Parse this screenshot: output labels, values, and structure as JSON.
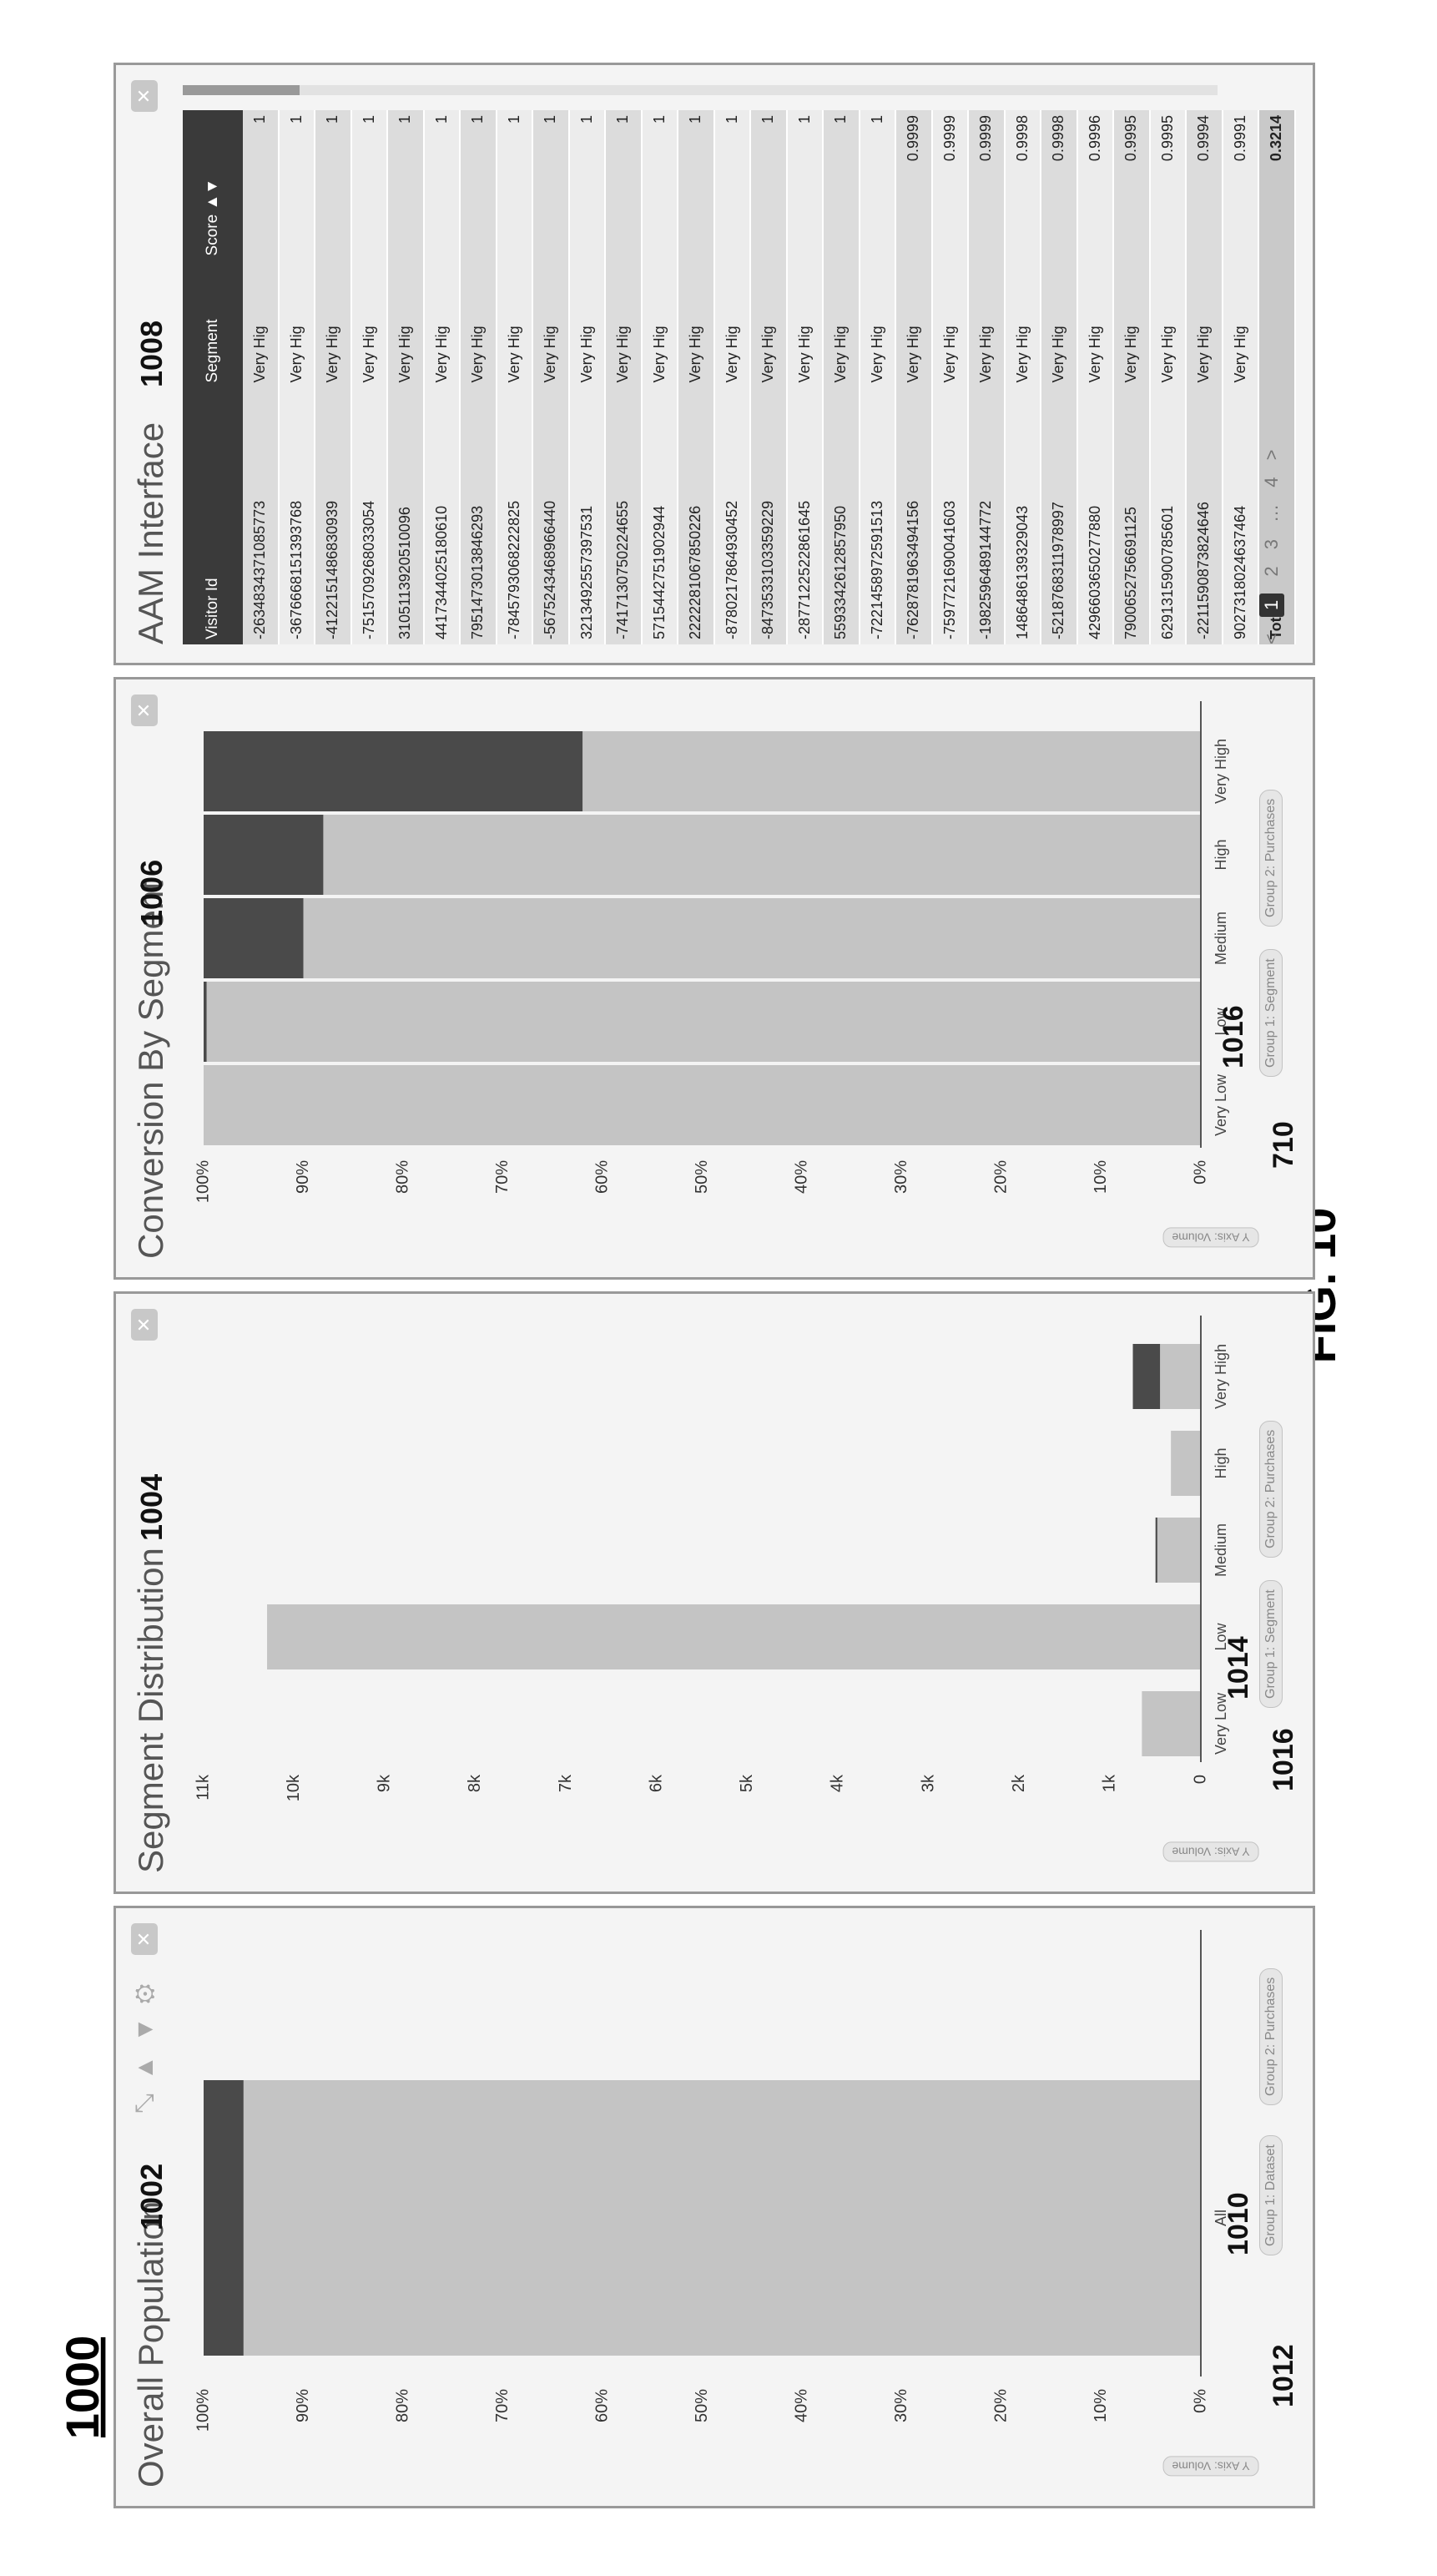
{
  "figure": {
    "number": "1000",
    "caption": "FIG. 10"
  },
  "panels": [
    {
      "title": "Overall Population",
      "ref": "1002"
    },
    {
      "title": "Segment Distribution",
      "ref": "1004"
    },
    {
      "title": "Conversion By Segment",
      "ref": "1006"
    },
    {
      "title": "AAM Interface",
      "ref": "1008"
    }
  ],
  "refs": {
    "r1010": "1010",
    "r1012": "1012",
    "r1014": "1014",
    "r1016a": "1016",
    "r1016b": "1016",
    "r710": "710"
  },
  "legend": {
    "group1_dataset": "Group 1: Dataset",
    "group1_segment": "Group 1: Segment",
    "group1_segment_b": "Group 1: Segment",
    "group2_purchases": "Group 2: Purchases",
    "group2_purchases_b": "Group 2: Purchases",
    "group2_purchases_c": "Group 2: Purchases"
  },
  "axis_buttons": [
    "Y Axis: Volume",
    "Y Axis: Volume",
    "Y Axis: Volume"
  ],
  "colors": {
    "bar_light": "#c4c4c4",
    "bar_dark": "#4a4a4a",
    "panel_bg": "#f4f4f4"
  },
  "chart_data": [
    {
      "type": "bar",
      "categories": [
        "All"
      ],
      "series": [
        {
          "name": "Group 1: Dataset",
          "values": [
            96
          ]
        },
        {
          "name": "Group 2: Purchases",
          "values": [
            4
          ]
        }
      ],
      "stacked": true,
      "yticks": [
        "0%",
        "10%",
        "20%",
        "30%",
        "40%",
        "50%",
        "60%",
        "70%",
        "80%",
        "90%",
        "100%"
      ],
      "ylim": [
        0,
        100
      ]
    },
    {
      "type": "bar",
      "categories": [
        "Very Low",
        "Low",
        "Medium",
        "High",
        "Very High"
      ],
      "series": [
        {
          "name": "Group 1: Segment",
          "values": [
            650,
            10300,
            480,
            330,
            450
          ]
        },
        {
          "name": "Group 2: Purchases",
          "values": [
            0,
            0,
            20,
            0,
            300
          ]
        }
      ],
      "stacked": true,
      "yticks": [
        "0",
        "1k",
        "2k",
        "3k",
        "4k",
        "5k",
        "6k",
        "7k",
        "8k",
        "9k",
        "10k",
        "11k"
      ],
      "ylim": [
        0,
        11000
      ]
    },
    {
      "type": "bar",
      "categories": [
        "Very Low",
        "Low",
        "Medium",
        "High",
        "Very High"
      ],
      "series": [
        {
          "name": "Group 1: Segment",
          "values": [
            100,
            99.7,
            90,
            88,
            62
          ]
        },
        {
          "name": "Group 2: Purchases",
          "values": [
            0,
            0.3,
            10,
            12,
            38
          ]
        }
      ],
      "stacked": true,
      "yticks": [
        "0%",
        "10%",
        "20%",
        "30%",
        "40%",
        "50%",
        "60%",
        "70%",
        "80%",
        "90%",
        "100%"
      ],
      "ylim": [
        0,
        100
      ]
    }
  ],
  "table": {
    "headers": [
      "Visitor Id",
      "Segment",
      "Score ▲▼"
    ],
    "rows": [
      [
        "-2634834371085773",
        "Very Hig",
        "1"
      ],
      [
        "-3676668151393768",
        "Very Hig",
        "1"
      ],
      [
        "-4122151486830939",
        "Very Hig",
        "1"
      ],
      [
        "-7515709268033054",
        "Very Hig",
        "1"
      ],
      [
        "3105113920510096",
        "Very Hig",
        "1"
      ],
      [
        "4417344025180610",
        "Very Hig",
        "1"
      ],
      [
        "7951473013846293",
        "Very Hig",
        "1"
      ],
      [
        "-7845793068222825",
        "Very Hig",
        "1"
      ],
      [
        "-5675243468966440",
        "Very Hig",
        "1"
      ],
      [
        "3213492557397531",
        "Very Hig",
        "1"
      ],
      [
        "-7417130750224655",
        "Very Hig",
        "1"
      ],
      [
        "5715442751902944",
        "Very Hig",
        "1"
      ],
      [
        "2222281067850226",
        "Very Hig",
        "1"
      ],
      [
        "-8780217864930452",
        "Very Hig",
        "1"
      ],
      [
        "-8473533103359229",
        "Very Hig",
        "1"
      ],
      [
        "-2877122522861645",
        "Very Hig",
        "1"
      ],
      [
        "5593342612857950",
        "Very Hig",
        "1"
      ],
      [
        "-7221458972591513",
        "Very Hig",
        "1"
      ],
      [
        "-7628781963494156",
        "Very Hig",
        "0.9999"
      ],
      [
        "-7597721690041603",
        "Very Hig",
        "0.9999"
      ],
      [
        "-1982596489144772",
        "Very Hig",
        "0.9999"
      ],
      [
        "1486486139329043",
        "Very Hig",
        "0.9998"
      ],
      [
        "-5218768311978997",
        "Very Hig",
        "0.9998"
      ],
      [
        "4296603650277880",
        "Very Hig",
        "0.9996"
      ],
      [
        "7900652756691125",
        "Very Hig",
        "0.9995"
      ],
      [
        "6291315900785601",
        "Very Hig",
        "0.9995"
      ],
      [
        "-2211590873824646",
        "Very Hig",
        "0.9994"
      ],
      [
        "9027318024637464",
        "Very Hig",
        "0.9991"
      ]
    ],
    "total_label": "Total",
    "total_score": "0.3214"
  },
  "pager": {
    "prev": "<",
    "pages": [
      "1",
      "2",
      "3",
      "…",
      "4"
    ],
    "next": ">"
  }
}
